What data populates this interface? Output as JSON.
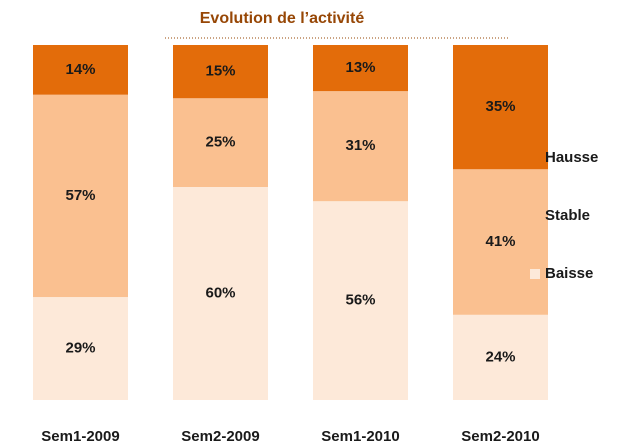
{
  "chart_data": {
    "type": "stacked_bar",
    "title": "Evolution de l’activité",
    "categories": [
      "Sem1-2009",
      "Sem2-2009",
      "Sem1-2010",
      "Sem2-2010"
    ],
    "series": [
      {
        "name": "Baisse",
        "color": "#fde9d9",
        "values": [
          29,
          60,
          56,
          24
        ],
        "value_labels": [
          "29%",
          "60%",
          "56%",
          "24%"
        ]
      },
      {
        "name": "Stable",
        "color": "#fac090",
        "values": [
          57,
          25,
          31,
          41
        ],
        "value_labels": [
          "57%",
          "25%",
          "31%",
          "41%"
        ]
      },
      {
        "name": "Hausse",
        "color": "#e36c0a",
        "values": [
          14,
          15,
          13,
          35
        ],
        "value_labels": [
          "14%",
          "15%",
          "13%",
          "35%"
        ]
      }
    ],
    "ylim": [
      0,
      100
    ],
    "legend": "right"
  }
}
